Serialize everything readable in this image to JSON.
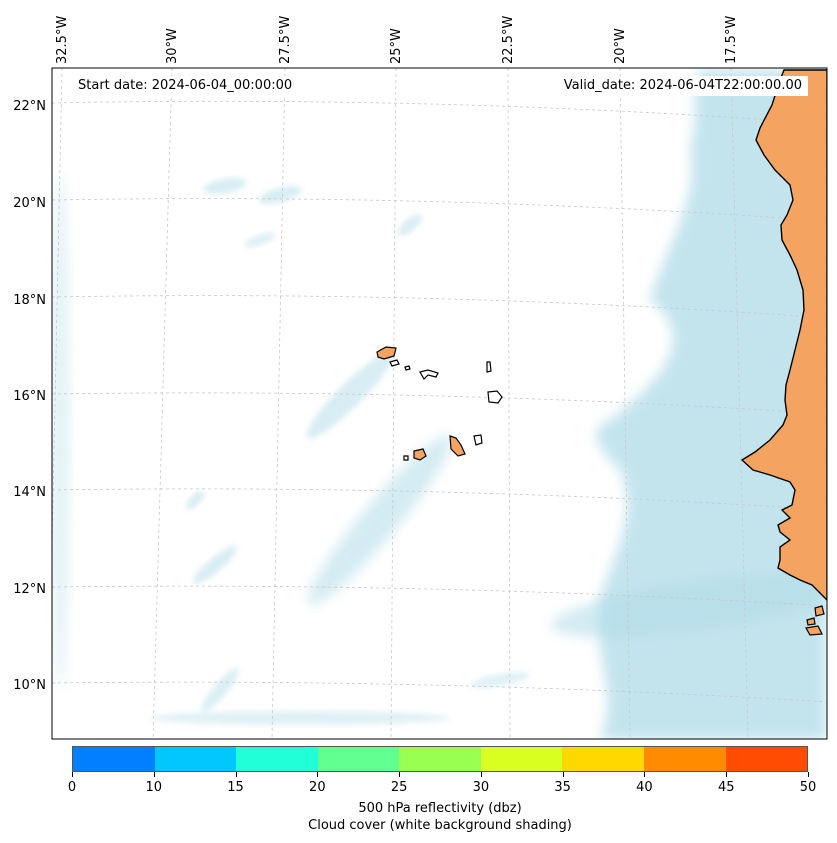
{
  "map": {
    "start_date": "Start date: 2024-06-04_00:00:00",
    "valid_date": "Valid_date: 2024-06-04T22:00:00.00",
    "lon_labels": [
      "32.5°W",
      "30°W",
      "27.5°W",
      "25°W",
      "22.5°W",
      "20°W",
      "17.5°W"
    ],
    "lat_labels": [
      "22°N",
      "20°N",
      "18°N",
      "16°N",
      "14°N",
      "12°N",
      "10°N"
    ],
    "colors": {
      "land": "#f4a460",
      "cloud": "#b0dce8",
      "coast": "#000000",
      "grid": "#c8c8c8"
    }
  },
  "colorbar": {
    "colors": [
      "#0080ff",
      "#00c8ff",
      "#20ffd8",
      "#60ff90",
      "#98ff50",
      "#d8ff20",
      "#ffd800",
      "#ff8c00",
      "#ff4c00"
    ],
    "tick_labels": [
      "0",
      "10",
      "15",
      "20",
      "25",
      "30",
      "35",
      "40",
      "45",
      "50"
    ],
    "label": "500 hPa reflectivity (dbz)",
    "sublabel": "Cloud cover (white background shading)"
  }
}
